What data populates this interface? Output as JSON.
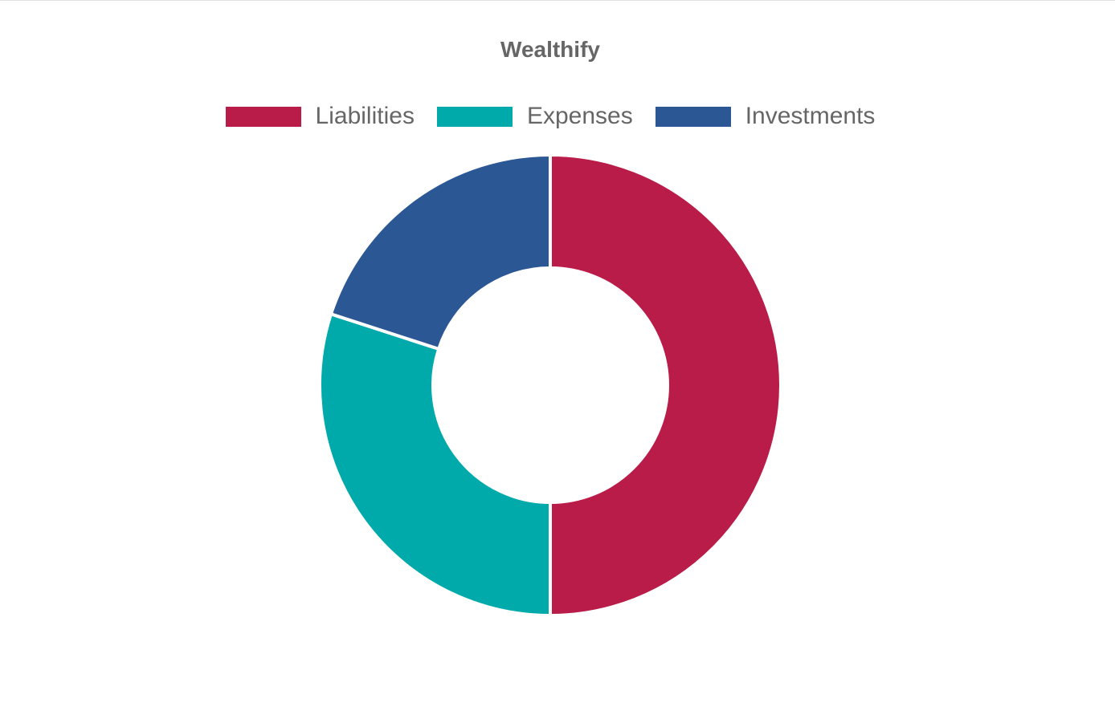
{
  "chart_data": {
    "type": "pie",
    "variant": "doughnut",
    "title": "Wealthify",
    "categories": [
      "Liabilities",
      "Expenses",
      "Investments"
    ],
    "values": [
      50,
      30,
      20
    ],
    "colors": [
      "#b91c48",
      "#00aaaa",
      "#2c5795"
    ],
    "start_angle": "12 o'clock",
    "direction": "clockwise",
    "legend": "top"
  }
}
